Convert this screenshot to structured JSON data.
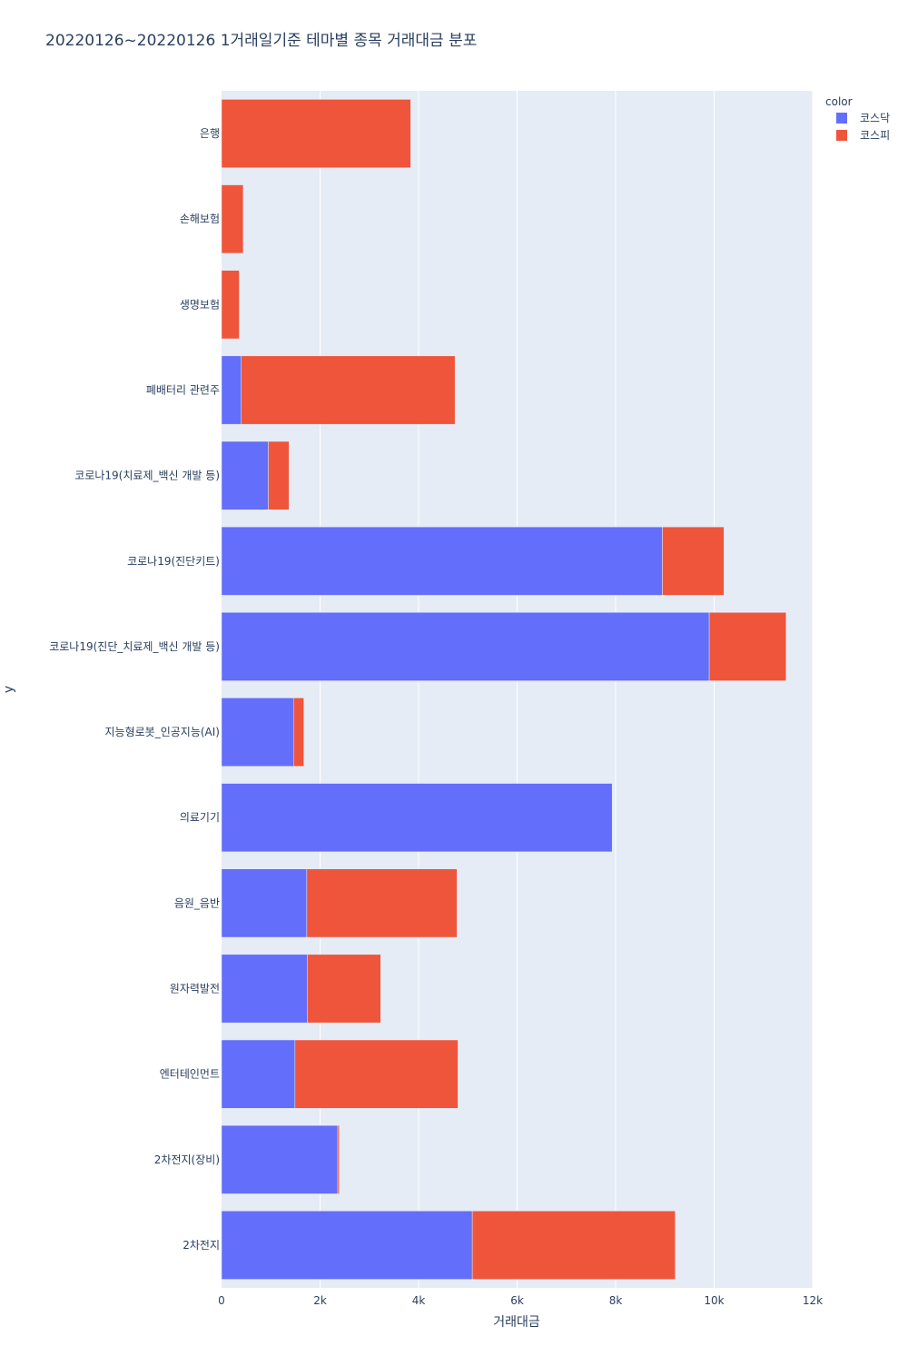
{
  "chart_data": {
    "type": "bar",
    "orientation": "horizontal",
    "barmode": "stack",
    "title": "20220126~20220126 1거래일기준 테마별 종목 거래대금 분포",
    "xlabel": "거래대금",
    "ylabel": "y",
    "xlim": [
      0,
      12000
    ],
    "x_ticks": [
      {
        "value": 0,
        "label": "0"
      },
      {
        "value": 2000,
        "label": "2k"
      },
      {
        "value": 4000,
        "label": "4k"
      },
      {
        "value": 6000,
        "label": "6k"
      },
      {
        "value": 8000,
        "label": "8k"
      },
      {
        "value": 10000,
        "label": "10k"
      },
      {
        "value": 12000,
        "label": "12k"
      }
    ],
    "grid": true,
    "legend": {
      "title": "color",
      "placement": "top-right"
    },
    "categories": [
      "은행",
      "손해보험",
      "생명보험",
      "폐배터리 관련주",
      "코로나19(치료제_백신 개발 등)",
      "코로나19(진단키트)",
      "코로나19(진단_치료제_백신 개발 등)",
      "지능형로봇_인공지능(AI)",
      "의료기기",
      "음원_음반",
      "원자력발전",
      "엔터테인먼트",
      "2차전지(장비)",
      "2차전지"
    ],
    "series": [
      {
        "name": "코스닥",
        "color": "#636efa",
        "values": [
          0,
          0,
          0,
          400,
          950,
          8950,
          9900,
          1470,
          7930,
          1730,
          1740,
          1490,
          2360,
          5090
        ]
      },
      {
        "name": "코스피",
        "color": "#ef553b",
        "values": [
          3840,
          440,
          360,
          4340,
          420,
          1250,
          1560,
          200,
          0,
          3050,
          1490,
          3310,
          30,
          4120
        ]
      }
    ]
  }
}
